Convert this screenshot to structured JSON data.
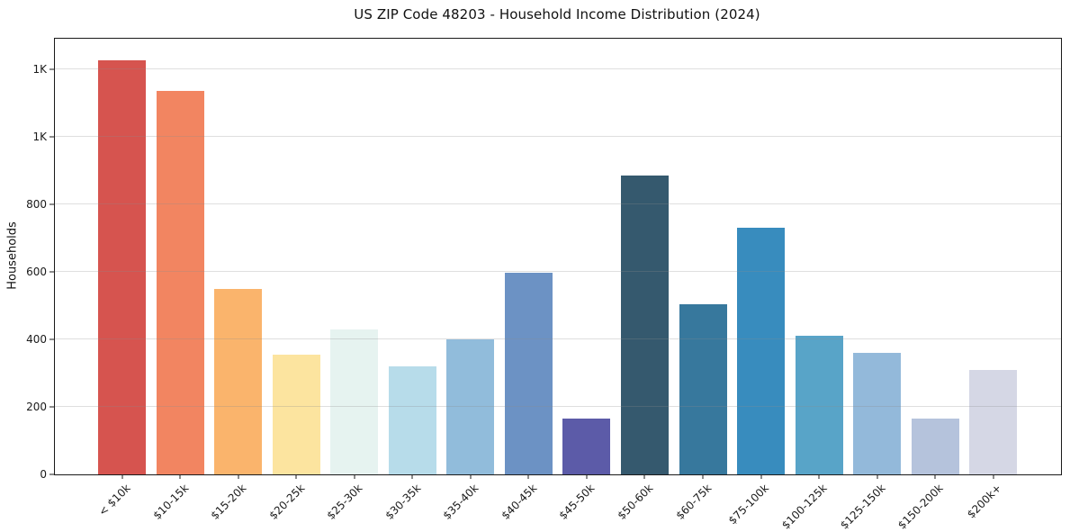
{
  "chart_data": {
    "type": "bar",
    "title": "US ZIP Code 48203 - Household Income Distribution (2024)",
    "xlabel": "",
    "ylabel": "Households",
    "categories": [
      "< $10k",
      "$10-15k",
      "$15-20k",
      "$20-25k",
      "$25-30k",
      "$30-35k",
      "$35-40k",
      "$40-45k",
      "$45-50k",
      "$50-60k",
      "$60-75k",
      "$75-100k",
      "$100-125k",
      "$125-150k",
      "$150-200k",
      "$200k+"
    ],
    "values": [
      1225,
      1135,
      550,
      355,
      430,
      320,
      400,
      597,
      165,
      885,
      505,
      730,
      410,
      360,
      165,
      310
    ],
    "bar_colors": [
      "#d6544f",
      "#f28561",
      "#fab46c",
      "#fce49f",
      "#e6f3f0",
      "#b7dcea",
      "#91bcdb",
      "#6c92c4",
      "#5c5ba8",
      "#35596e",
      "#37789d",
      "#388cbe",
      "#58a4c8",
      "#93b9da",
      "#b5c3dc",
      "#d5d7e5"
    ],
    "ylim": [
      0,
      1290
    ],
    "yticks": [
      0,
      200,
      400,
      600,
      800,
      1000,
      1200
    ],
    "ytick_labels": [
      "0",
      "200",
      "400",
      "600",
      "800",
      "1K",
      "1K"
    ],
    "grid": "horizontal gridlines drawn over bars",
    "grid_color": "#e3e3e3",
    "legend": "none",
    "background": "#ffffff"
  }
}
